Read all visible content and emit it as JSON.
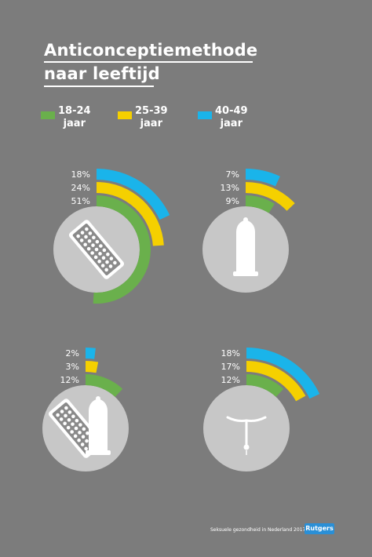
{
  "title": {
    "line1": "Anticonceptiemethode",
    "line2": "naar leeftijd"
  },
  "legend": [
    {
      "range": "18-24",
      "unit": "jaar",
      "color": "#6ab04c"
    },
    {
      "range": "25-39",
      "unit": "jaar",
      "color": "#f5d000"
    },
    {
      "range": "40-49",
      "unit": "jaar",
      "color": "#1ab4ea"
    }
  ],
  "chart_data": {
    "type": "bar",
    "subtype": "radial",
    "title": "Anticonceptiemethode naar leeftijd",
    "categories": [
      "pil",
      "condoom",
      "pil en condoom",
      "spiraal"
    ],
    "series": [
      {
        "name": "18-24 jaar",
        "values": [
          51,
          9,
          12,
          12
        ],
        "color": "#6ab04c"
      },
      {
        "name": "25-39 jaar",
        "values": [
          24,
          13,
          3,
          17
        ],
        "color": "#f5d000"
      },
      {
        "name": "40-49 jaar",
        "values": [
          18,
          7,
          2,
          18
        ],
        "color": "#1ab4ea"
      }
    ],
    "labels": [
      [
        "51%",
        "24%",
        "18%"
      ],
      [
        "9%",
        "13%",
        "7%"
      ],
      [
        "12%",
        "3%",
        "2%"
      ],
      [
        "12%",
        "17%",
        "18%"
      ]
    ],
    "icons": [
      "pill-pack-icon",
      "condom-icon",
      "pill-pack-and-condom-icon",
      "iud-icon"
    ],
    "ylim": [
      0,
      100
    ]
  },
  "footer": {
    "source": "Seksuele gezondheid in Nederland 2017",
    "brand": "Rutgers"
  }
}
